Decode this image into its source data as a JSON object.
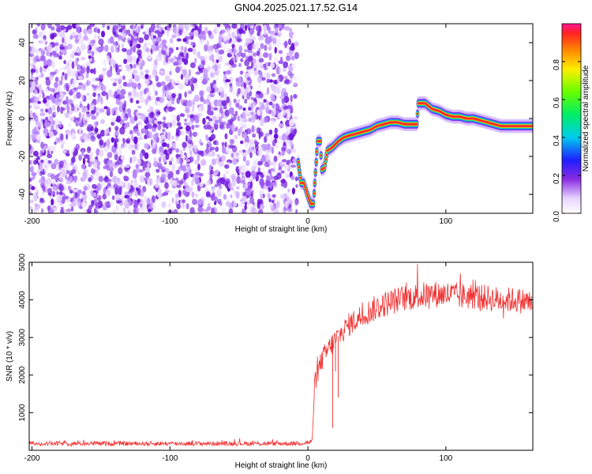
{
  "title": "GN04.2025.021.17.52.G14",
  "chart_data": [
    {
      "type": "heatmap",
      "xlabel": "Height of straight line (km)",
      "ylabel": "Frequency (Hz)",
      "xlim": [
        -202,
        163
      ],
      "ylim": [
        -50,
        50
      ],
      "xticks": [
        -200,
        -100,
        0,
        100
      ],
      "yticks": [
        -40,
        -20,
        0,
        20,
        40
      ],
      "noise_region": [
        -202,
        -8
      ],
      "colorbar": {
        "label": "Normalized spectral amplitude",
        "ticks": [
          0.0,
          0.2,
          0.4,
          0.6,
          0.8
        ],
        "tick_labels": [
          "0.0",
          "0.2",
          "0.4",
          "0.6",
          "0.8"
        ],
        "range": [
          0,
          1
        ],
        "colormap": "rainbow"
      },
      "tone_track": {
        "x": [
          -7,
          -5,
          -3,
          0,
          2,
          4,
          7,
          9,
          10,
          12,
          14,
          18,
          22,
          26,
          30,
          35,
          40,
          45,
          50,
          55,
          60,
          65,
          70,
          75,
          78,
          79,
          80,
          85,
          90,
          95,
          100,
          105,
          110,
          115,
          120,
          125,
          130,
          135,
          140,
          145,
          150,
          155,
          160,
          163
        ],
        "y": [
          -23,
          -34,
          -34,
          -41,
          -45,
          -45,
          -12,
          -12,
          -27,
          -26,
          -17,
          -15,
          -12,
          -10,
          -9,
          -8,
          -7,
          -6,
          -4,
          -3,
          -2,
          -2,
          -3,
          -3,
          -3,
          -3,
          8,
          8,
          5,
          4,
          2,
          1,
          1,
          0,
          0,
          -1,
          -2,
          -3,
          -4,
          -4,
          -4,
          -4,
          -4,
          -4
        ]
      }
    },
    {
      "type": "line",
      "xlabel": "Height of straight line (km)",
      "ylabel": "SNR (10 * v/v)",
      "xlim": [
        -202,
        163
      ],
      "ylim": [
        0,
        5000
      ],
      "xticks": [
        -200,
        -100,
        0,
        100
      ],
      "yticks": [
        1000,
        2000,
        3000,
        4000,
        5000
      ],
      "color": "#f03030",
      "envelope": {
        "x": [
          -202,
          -150,
          -100,
          -50,
          -10,
          3,
          5,
          10,
          15,
          20,
          25,
          30,
          40,
          50,
          60,
          70,
          80,
          90,
          100,
          110,
          120,
          130,
          140,
          150,
          160,
          163
        ],
        "mean": [
          180,
          180,
          180,
          180,
          180,
          220,
          1800,
          2400,
          2700,
          2950,
          3150,
          3350,
          3600,
          3800,
          3950,
          4050,
          4100,
          4150,
          4150,
          4100,
          4100,
          4050,
          4000,
          4000,
          3950,
          3900
        ],
        "spread": [
          60,
          60,
          60,
          60,
          60,
          80,
          250,
          300,
          300,
          300,
          300,
          320,
          330,
          350,
          350,
          350,
          360,
          360,
          360,
          360,
          360,
          350,
          350,
          340,
          340,
          340
        ]
      },
      "spikes": [
        {
          "x": 18,
          "y": 600
        },
        {
          "x": 20,
          "y": 2100
        },
        {
          "x": 22,
          "y": 1400
        }
      ]
    }
  ]
}
